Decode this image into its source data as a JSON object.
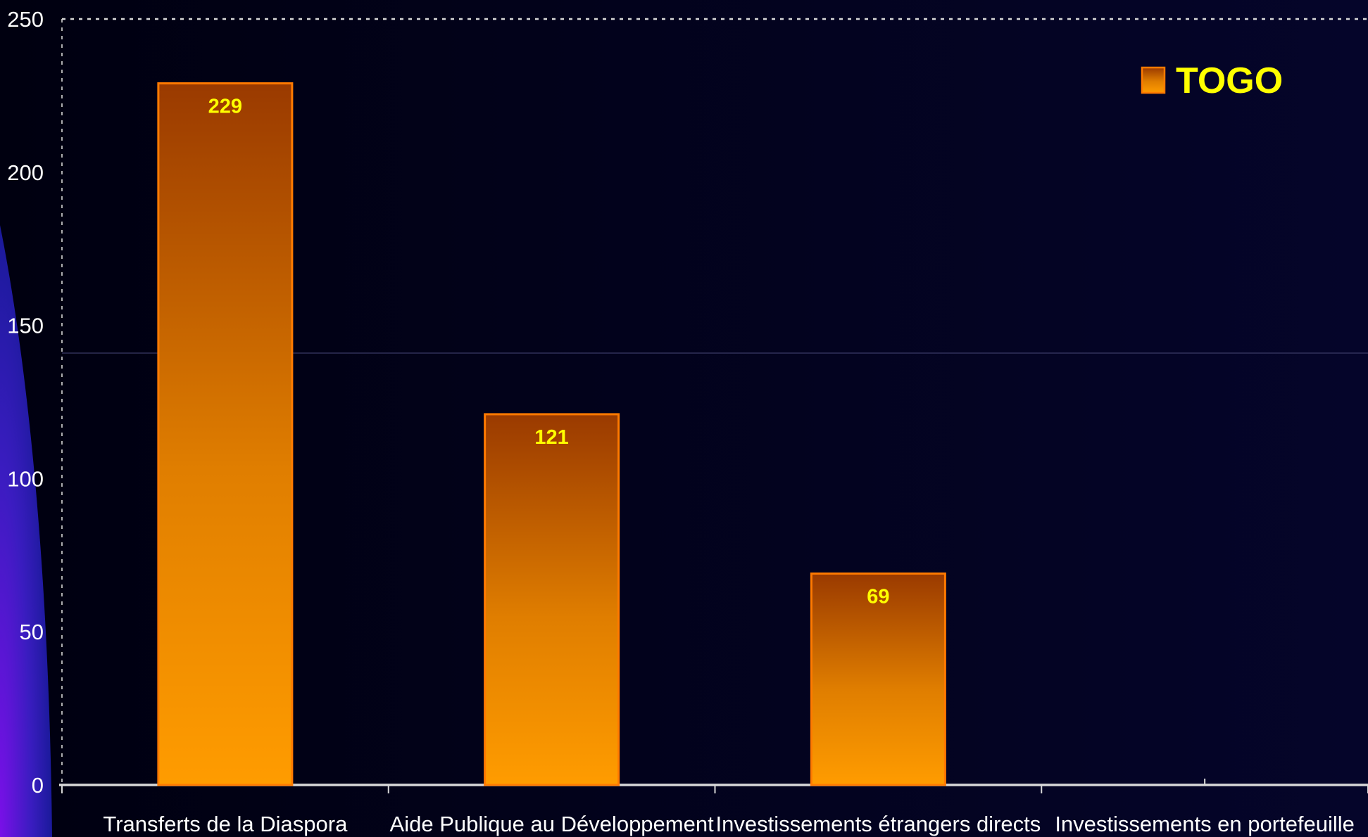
{
  "chart_data": {
    "type": "bar",
    "categories": [
      "Transferts de la Diaspora",
      "Aide Publique au Développement",
      "Investissements étrangers directs",
      "Investissements en portefeuille"
    ],
    "series": [
      {
        "name": "TOGO",
        "values": [
          229,
          121,
          69,
          null
        ],
        "data_labels": [
          "229",
          "121",
          "69",
          ""
        ]
      }
    ],
    "title": "",
    "xlabel": "",
    "ylabel": "",
    "ylim": [
      0,
      250
    ],
    "yticks": [
      "0",
      "50",
      "100",
      "150",
      "200",
      "250"
    ],
    "grid": "dashed top line",
    "legend": "top-right",
    "colors": {
      "background": "#02021c",
      "bar_top": "#9a3a00",
      "bar_bottom": "#ff9c00",
      "bar_border": "#ff7a00",
      "data_label": "#ffff00",
      "legend_text": "#ffff00",
      "axis": "#d8d8d8",
      "accent_arc": "#5a12d8"
    }
  }
}
